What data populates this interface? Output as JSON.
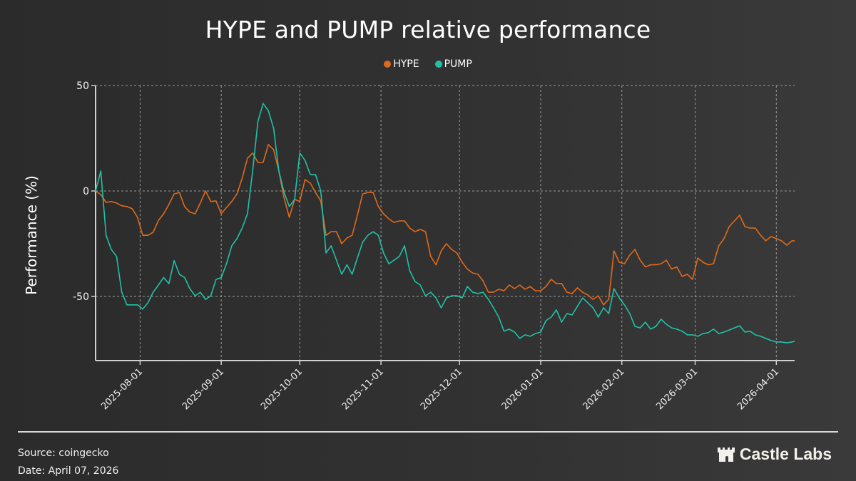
{
  "chart_data": {
    "type": "line",
    "title": "HYPE and PUMP relative performance",
    "xlabel": "",
    "ylabel": "Performance (%)",
    "x_start": "2025-07-15",
    "x_end": "2026-04-08",
    "x_step_days": 2,
    "ylim": [
      -80,
      50
    ],
    "yticks": [
      50,
      0,
      -50
    ],
    "xticks": [
      "2025-08-01",
      "2025-09-01",
      "2025-10-01",
      "2025-11-01",
      "2025-12-01",
      "2026-01-01",
      "2026-02-01",
      "2026-03-01",
      "2026-04-01"
    ],
    "grid": true,
    "legend_position": "top-center",
    "series": [
      {
        "name": "HYPE",
        "color": "#e06a1b",
        "values": [
          0,
          -1.7,
          -5.4,
          -5,
          -5.7,
          -7,
          -7.4,
          -8.4,
          -12.5,
          -21,
          -21,
          -19.6,
          -14,
          -10.8,
          -6.4,
          -1.4,
          -0.7,
          -7.4,
          -10,
          -10.8,
          -5.7,
          0,
          -5,
          -4.7,
          -10.8,
          -7.8,
          -5,
          -1.4,
          6,
          15.5,
          18,
          13.5,
          13.5,
          22,
          19.6,
          9.5,
          -3.4,
          -12.5,
          -4,
          -5,
          5.4,
          3.7,
          -0.7,
          -4.7,
          -21,
          -19.3,
          -19.3,
          -25,
          -22.3,
          -21,
          -11.5,
          -1.4,
          -0.7,
          -0.7,
          -7.4,
          -10.8,
          -13.2,
          -14.9,
          -14.2,
          -14.2,
          -17.6,
          -19.3,
          -18.2,
          -19.3,
          -31,
          -35,
          -28.4,
          -25,
          -27.7,
          -29.4,
          -33.8,
          -37,
          -38.9,
          -39.5,
          -42.6,
          -48,
          -48,
          -46.6,
          -47.3,
          -44.6,
          -46.3,
          -44.6,
          -46.6,
          -45.3,
          -47.3,
          -47.3,
          -45.3,
          -41.9,
          -43.9,
          -43.9,
          -48,
          -48.6,
          -45.9,
          -48,
          -49.3,
          -51.4,
          -49.7,
          -54,
          -51.4,
          -28.4,
          -33.8,
          -34.5,
          -30.4,
          -27.7,
          -32.8,
          -36,
          -35,
          -35,
          -34.5,
          -32.8,
          -37,
          -36,
          -40.5,
          -39.5,
          -41.9,
          -31.8,
          -33.8,
          -35,
          -34.5,
          -26,
          -22.6,
          -16.9,
          -14.2,
          -11.5,
          -16.9,
          -17.6,
          -17.6,
          -21,
          -23.6,
          -21.6,
          -22.6,
          -23.6,
          -25.7,
          -23.6,
          -23.6
        ]
      },
      {
        "name": "PUMP",
        "color": "#1fc2a7",
        "values": [
          0,
          9.5,
          -21,
          -27.7,
          -31,
          -48,
          -54,
          -54,
          -54,
          -56,
          -53,
          -48,
          -44.6,
          -41,
          -44,
          -33,
          -39.5,
          -41,
          -46.3,
          -49.7,
          -48,
          -51.4,
          -49.7,
          -42,
          -41,
          -34.5,
          -26,
          -22.6,
          -17.6,
          -10.8,
          9.5,
          33,
          41.5,
          38,
          29.7,
          9.5,
          -0.7,
          -7.4,
          -4,
          18,
          14.5,
          7.8,
          7.8,
          0,
          -29.4,
          -26,
          -32.8,
          -39.5,
          -35,
          -39.5,
          -31.8,
          -24.3,
          -21,
          -19.3,
          -21,
          -29.4,
          -34.5,
          -32.8,
          -31,
          -26,
          -37.8,
          -42.9,
          -44.6,
          -49.7,
          -48,
          -50.7,
          -55.4,
          -50.7,
          -49.7,
          -49.7,
          -50.7,
          -45.3,
          -48,
          -48.6,
          -48,
          -51.4,
          -55.4,
          -59.8,
          -66.5,
          -65.5,
          -66.9,
          -69.9,
          -68.2,
          -68.9,
          -67.6,
          -66.9,
          -61.5,
          -59.8,
          -56.4,
          -62.2,
          -58.1,
          -58.8,
          -54.7,
          -50.7,
          -53,
          -55.4,
          -59.8,
          -55.4,
          -58.1,
          -46.3,
          -50.7,
          -54,
          -58.1,
          -64.2,
          -64.9,
          -62.2,
          -65.5,
          -64.2,
          -60.8,
          -63.2,
          -64.9,
          -65.5,
          -66.5,
          -68.2,
          -68.2,
          -68.9,
          -67.6,
          -67.2,
          -65.5,
          -67.6,
          -66.9,
          -65.9,
          -64.9,
          -63.9,
          -66.9,
          -66.5,
          -68.2,
          -68.9,
          -69.9,
          -70.9,
          -71.6,
          -71.6,
          -72,
          -71.6,
          -71.3
        ]
      }
    ]
  },
  "footer": {
    "source": "Source: coingecko",
    "date": "Date: April 07, 2026",
    "brand": "Castle Labs",
    "brand_icon": "castle-icon"
  }
}
